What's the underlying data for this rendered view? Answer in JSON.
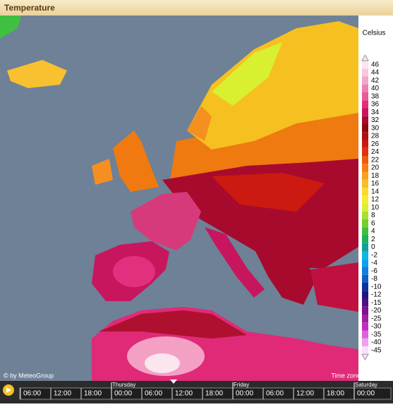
{
  "header": {
    "title": "Temperature"
  },
  "legend": {
    "unit": "Celsius",
    "entries": [
      {
        "label": "46",
        "color": "#fbe6ef"
      },
      {
        "label": "44",
        "color": "#f8c8dc"
      },
      {
        "label": "42",
        "color": "#f4a6c6"
      },
      {
        "label": "40",
        "color": "#ef7fb0"
      },
      {
        "label": "38",
        "color": "#ea5a9a"
      },
      {
        "label": "36",
        "color": "#e0307e"
      },
      {
        "label": "34",
        "color": "#c8165e"
      },
      {
        "label": "32",
        "color": "#a80a2e"
      },
      {
        "label": "30",
        "color": "#8c0a0a"
      },
      {
        "label": "28",
        "color": "#b01010"
      },
      {
        "label": "26",
        "color": "#cc1a10"
      },
      {
        "label": "24",
        "color": "#e03010"
      },
      {
        "label": "22",
        "color": "#ee5a10"
      },
      {
        "label": "20",
        "color": "#f57f10"
      },
      {
        "label": "18",
        "color": "#f9a020"
      },
      {
        "label": "16",
        "color": "#fbbd20"
      },
      {
        "label": "14",
        "color": "#fdd830"
      },
      {
        "label": "12",
        "color": "#f5ec30"
      },
      {
        "label": "10",
        "color": "#d8f030"
      },
      {
        "label": "8",
        "color": "#a8e030"
      },
      {
        "label": "6",
        "color": "#70d030"
      },
      {
        "label": "4",
        "color": "#40c040"
      },
      {
        "label": "2",
        "color": "#20b060"
      },
      {
        "label": "0",
        "color": "#10a0a0"
      },
      {
        "label": "-2",
        "color": "#10b8e0"
      },
      {
        "label": "-4",
        "color": "#10a0f0"
      },
      {
        "label": "-6",
        "color": "#1080e0"
      },
      {
        "label": "-8",
        "color": "#1060c0"
      },
      {
        "label": "-10",
        "color": "#1030a0"
      },
      {
        "label": "-12",
        "color": "#201880"
      },
      {
        "label": "-15",
        "color": "#501080"
      },
      {
        "label": "-20",
        "color": "#801090"
      },
      {
        "label": "-25",
        "color": "#a020a0"
      },
      {
        "label": "-30",
        "color": "#c030c0"
      },
      {
        "label": "-35",
        "color": "#e060e0"
      },
      {
        "label": "-40",
        "color": "#f0a0f0"
      },
      {
        "label": "-45",
        "color": "#fae0fa"
      }
    ]
  },
  "credits": {
    "source": "© by MeteoGroup",
    "timezone": "Time zone: Etc/UTC"
  },
  "timeline": {
    "days": [
      {
        "label": "Thursday",
        "slot": 3
      },
      {
        "label": "Friday",
        "slot": 7
      },
      {
        "label": "Saturday",
        "slot": 11
      }
    ],
    "times": [
      "06:00",
      "12:00",
      "18:00",
      "00:00",
      "06:00",
      "12:00",
      "18:00",
      "00:00",
      "06:00",
      "12:00",
      "18:00",
      "00:00"
    ]
  }
}
